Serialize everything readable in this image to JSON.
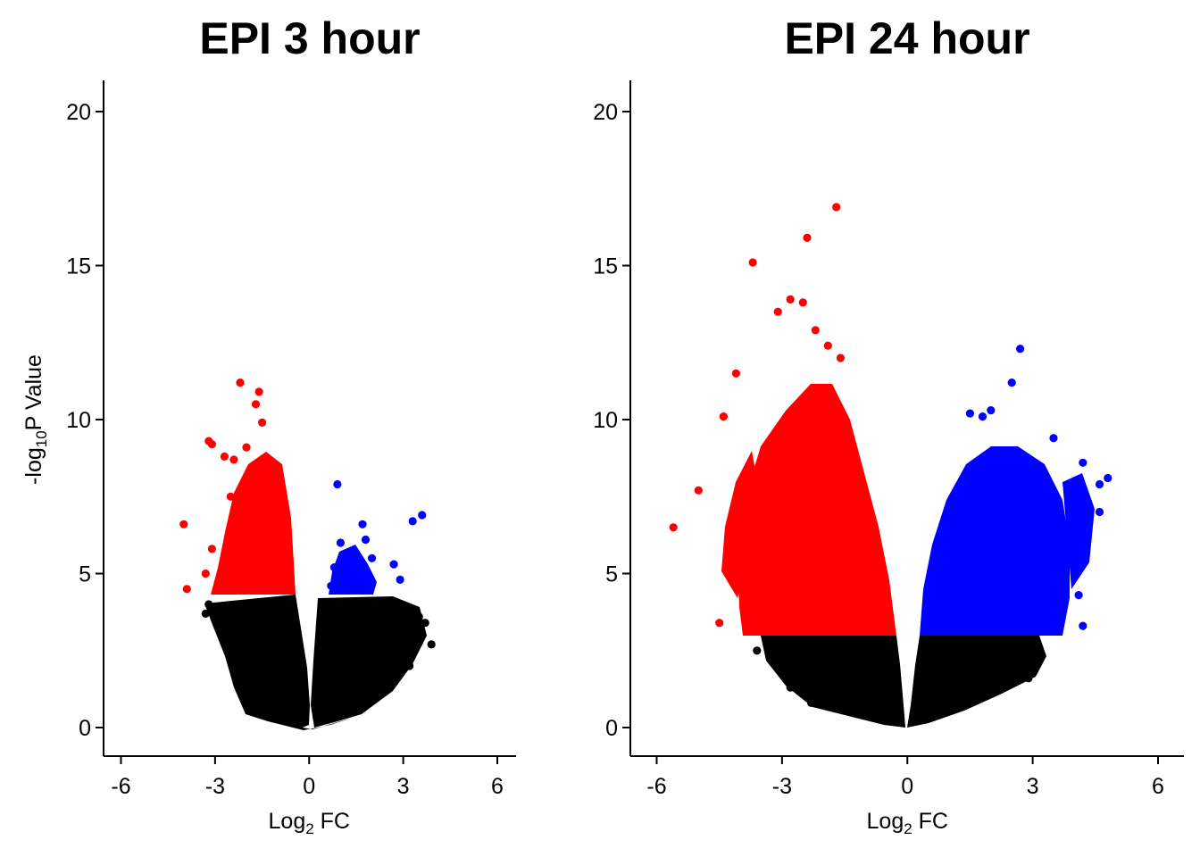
{
  "chart_data": [
    {
      "type": "scatter",
      "title": "EPI 3 hour",
      "xlabel_main": "Log",
      "xlabel_sub": "2",
      "xlabel_tail": " FC",
      "ylabel_main": "-log",
      "ylabel_sub": "10",
      "ylabel_tail": "P Value",
      "xlim": [
        -6.6,
        6.6
      ],
      "ylim": [
        -0.9,
        21
      ],
      "xticks": [
        -6,
        -3,
        0,
        3,
        6
      ],
      "xtick_labels": [
        "-6",
        "-3",
        "0",
        "3",
        "6"
      ],
      "yticks": [
        0,
        5,
        10,
        15,
        20
      ],
      "ytick_labels": [
        "0",
        "5",
        "10",
        "15",
        "20"
      ],
      "threshold": 4.3,
      "colors": {
        "down": "#ff0000",
        "up": "#0000ff",
        "ns": "#000000"
      },
      "series": [
        {
          "name": "down",
          "x": [
            -2.2,
            -1.6,
            -1.7,
            -3.2,
            -3.1,
            -2.7,
            -2.4,
            -2.0,
            -1.5,
            -1.8,
            -4.0,
            -3.9,
            -3.1,
            -3.3,
            -2.5,
            -2.1,
            -1.9,
            -1.3,
            -1.4,
            -1.0
          ],
          "y": [
            11.2,
            10.9,
            10.5,
            9.3,
            9.2,
            8.8,
            8.7,
            9.1,
            9.9,
            8.4,
            6.6,
            4.5,
            5.8,
            5.0,
            7.5,
            7.8,
            6.9,
            6.2,
            5.5,
            4.8
          ]
        },
        {
          "name": "up",
          "x": [
            0.9,
            1.0,
            1.3,
            1.7,
            1.8,
            2.0,
            2.7,
            3.3,
            3.6,
            2.9,
            0.8,
            1.1,
            1.4,
            1.6,
            0.7
          ],
          "y": [
            7.9,
            6.0,
            5.5,
            6.6,
            6.1,
            5.5,
            5.3,
            6.7,
            6.9,
            4.8,
            5.2,
            5.6,
            4.9,
            5.1,
            4.6
          ]
        },
        {
          "name": "not significant",
          "x": [
            3.9,
            3.7,
            3.5,
            3.2,
            -3.2,
            -3.3
          ],
          "y": [
            2.7,
            3.4,
            3.6,
            2.0,
            4.0,
            3.7
          ]
        }
      ]
    },
    {
      "type": "scatter",
      "title": "EPI 24 hour",
      "xlabel_main": "Log",
      "xlabel_sub": "2",
      "xlabel_tail": " FC",
      "ylabel_main": "",
      "ylabel_sub": "",
      "ylabel_tail": "",
      "xlim": [
        -6.6,
        6.6
      ],
      "ylim": [
        -0.9,
        21
      ],
      "xticks": [
        -6,
        -3,
        0,
        3,
        6
      ],
      "xtick_labels": [
        "-6",
        "-3",
        "0",
        "3",
        "6"
      ],
      "yticks": [
        0,
        5,
        10,
        15,
        20
      ],
      "ytick_labels": [
        "0",
        "5",
        "10",
        "15",
        "20"
      ],
      "threshold": 2.85,
      "colors": {
        "down": "#ff0000",
        "up": "#0000ff",
        "ns": "#000000"
      },
      "series": [
        {
          "name": "down",
          "x": [
            -1.7,
            -2.4,
            -3.7,
            -2.8,
            -2.5,
            -3.1,
            -5.0,
            -5.6,
            -4.5,
            -4.4,
            -4.1,
            -2.2,
            -1.9,
            -1.6
          ],
          "y": [
            16.9,
            15.9,
            15.1,
            13.9,
            13.8,
            13.5,
            7.7,
            6.5,
            3.4,
            10.1,
            11.5,
            12.9,
            12.4,
            12.0
          ]
        },
        {
          "name": "up",
          "x": [
            2.7,
            2.5,
            2.0,
            1.5,
            1.8,
            3.5,
            4.2,
            4.6,
            4.8,
            4.6,
            4.0,
            3.9,
            4.1,
            3.0,
            4.2
          ],
          "y": [
            12.3,
            11.2,
            10.3,
            10.2,
            10.1,
            9.4,
            8.6,
            7.9,
            8.1,
            7.0,
            6.5,
            5.4,
            4.3,
            4.9,
            3.3
          ]
        },
        {
          "name": "not significant",
          "x": [
            -3.6,
            -2.8,
            -2.3,
            2.9,
            3.1
          ],
          "y": [
            2.5,
            1.3,
            0.8,
            1.6,
            2.1
          ]
        }
      ]
    }
  ]
}
